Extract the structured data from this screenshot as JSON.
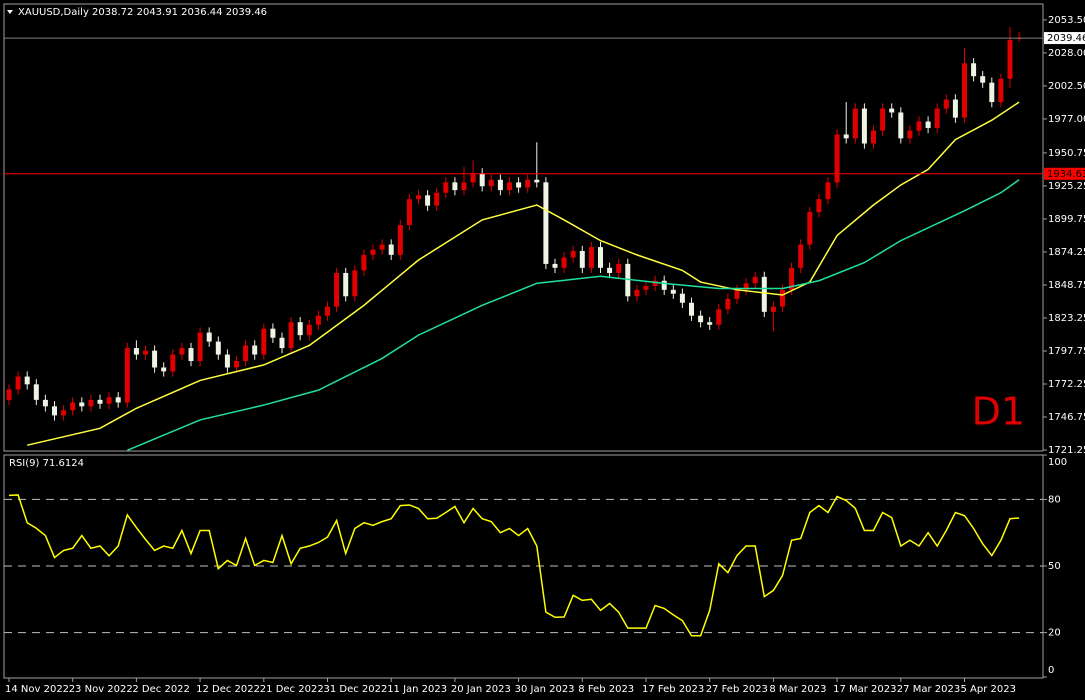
{
  "chart_data": {
    "type": "candlestick",
    "symbol": "XAUUSD,Daily",
    "timeframe_label": "D1",
    "up_color": "#e00000",
    "down_color": "#eef5e4",
    "ylim": [
      1720.5,
      2065
    ],
    "yticks": [
      {
        "value": 2053.5,
        "label": "2053.50"
      },
      {
        "value": 2028,
        "label": "2028.00"
      },
      {
        "value": 2002.5,
        "label": "2002.50"
      },
      {
        "value": 1977,
        "label": "1977.00"
      },
      {
        "value": 1950.75,
        "label": "1950.75"
      },
      {
        "value": 1925.25,
        "label": "1925.25"
      },
      {
        "value": 1899.75,
        "label": "1899.75"
      },
      {
        "value": 1874.25,
        "label": "1874.25"
      },
      {
        "value": 1848.75,
        "label": "1848.75"
      },
      {
        "value": 1823.25,
        "label": "1823.25"
      },
      {
        "value": 1797.75,
        "label": "1797.75"
      },
      {
        "value": 1772.25,
        "label": "1772.25"
      },
      {
        "value": 1746.75,
        "label": "1746.75"
      },
      {
        "value": 1721.25,
        "label": "1721.25"
      }
    ],
    "categories": [
      "14 Nov 2022",
      null,
      null,
      null,
      null,
      null,
      null,
      "23 Nov 2022",
      null,
      null,
      null,
      null,
      null,
      null,
      "2 Dec 2022",
      null,
      null,
      null,
      null,
      null,
      null,
      "12 Dec 2022",
      null,
      null,
      null,
      null,
      null,
      null,
      "21 Dec 2022",
      null,
      null,
      null,
      null,
      null,
      null,
      "31 Dec 2022",
      null,
      null,
      null,
      null,
      null,
      null,
      "11 Jan 2023",
      null,
      null,
      null,
      null,
      null,
      null,
      "20 Jan 2023",
      null,
      null,
      null,
      null,
      null,
      null,
      "30 Jan 2023",
      null,
      null,
      null,
      null,
      null,
      null,
      "8 Feb 2023",
      null,
      null,
      null,
      null,
      null,
      null,
      "17 Feb 2023",
      null,
      null,
      null,
      null,
      null,
      null,
      "27 Feb 2023",
      null,
      null,
      null,
      null,
      null,
      null,
      "8 Mar 2023",
      null,
      null,
      null,
      null,
      null,
      null,
      "17 Mar 2023",
      null,
      null,
      null,
      null,
      null,
      null,
      "27 Mar 2023",
      null,
      null,
      null,
      null,
      null,
      null,
      "5 Apr 2023",
      null,
      null,
      null,
      null,
      null,
      null
    ],
    "candles": [
      [
        1760,
        1772,
        1756,
        1768
      ],
      [
        1768,
        1782,
        1764,
        1778
      ],
      [
        1778,
        1782,
        1768,
        1772
      ],
      [
        1772,
        1776,
        1756,
        1760
      ],
      [
        1760,
        1764,
        1751,
        1755
      ],
      [
        1755,
        1759,
        1744,
        1748
      ],
      [
        1748,
        1756,
        1744,
        1752
      ],
      [
        1752,
        1762,
        1748,
        1758
      ],
      [
        1758,
        1762,
        1751,
        1755
      ],
      [
        1755,
        1764,
        1751,
        1760
      ],
      [
        1760,
        1764,
        1753,
        1757
      ],
      [
        1757,
        1766,
        1753,
        1762
      ],
      [
        1762,
        1766,
        1754,
        1758
      ],
      [
        1758,
        1804,
        1754,
        1800
      ],
      [
        1800,
        1806,
        1791,
        1795
      ],
      [
        1795,
        1802,
        1791,
        1798
      ],
      [
        1798,
        1802,
        1781,
        1785
      ],
      [
        1785,
        1789,
        1778,
        1782
      ],
      [
        1782,
        1799,
        1778,
        1795
      ],
      [
        1795,
        1804,
        1791,
        1800
      ],
      [
        1800,
        1804,
        1786,
        1790
      ],
      [
        1790,
        1816,
        1786,
        1812
      ],
      [
        1812,
        1816,
        1801,
        1805
      ],
      [
        1805,
        1809,
        1791,
        1795
      ],
      [
        1795,
        1799,
        1781,
        1785
      ],
      [
        1785,
        1794,
        1781,
        1790
      ],
      [
        1790,
        1806,
        1786,
        1802
      ],
      [
        1802,
        1806,
        1791,
        1795
      ],
      [
        1795,
        1819,
        1791,
        1815
      ],
      [
        1815,
        1819,
        1804,
        1808
      ],
      [
        1808,
        1812,
        1796,
        1800
      ],
      [
        1800,
        1824,
        1796,
        1820
      ],
      [
        1820,
        1824,
        1806,
        1810
      ],
      [
        1810,
        1822,
        1806,
        1818
      ],
      [
        1818,
        1829,
        1814,
        1825
      ],
      [
        1825,
        1836,
        1821,
        1832
      ],
      [
        1832,
        1862,
        1828,
        1858
      ],
      [
        1858,
        1862,
        1836,
        1840
      ],
      [
        1840,
        1864,
        1836,
        1860
      ],
      [
        1860,
        1876,
        1856,
        1872
      ],
      [
        1872,
        1880,
        1868,
        1876
      ],
      [
        1876,
        1884,
        1872,
        1880
      ],
      [
        1880,
        1884,
        1868,
        1872
      ],
      [
        1872,
        1899,
        1868,
        1895
      ],
      [
        1895,
        1919,
        1891,
        1915
      ],
      [
        1915,
        1922,
        1911,
        1918
      ],
      [
        1918,
        1922,
        1906,
        1910
      ],
      [
        1910,
        1924,
        1906,
        1920
      ],
      [
        1920,
        1932,
        1916,
        1928
      ],
      [
        1928,
        1932,
        1918,
        1922
      ],
      [
        1922,
        1940,
        1918,
        1928
      ],
      [
        1928,
        1945,
        1924,
        1935
      ],
      [
        1935,
        1939,
        1921,
        1925
      ],
      [
        1925,
        1934,
        1921,
        1930
      ],
      [
        1930,
        1934,
        1918,
        1922
      ],
      [
        1922,
        1932,
        1918,
        1928
      ],
      [
        1928,
        1932,
        1920,
        1924
      ],
      [
        1924,
        1934,
        1920,
        1930
      ],
      [
        1930,
        1959,
        1924,
        1928
      ],
      [
        1928,
        1932,
        1861,
        1865
      ],
      [
        1865,
        1869,
        1858,
        1862
      ],
      [
        1862,
        1874,
        1858,
        1870
      ],
      [
        1870,
        1879,
        1866,
        1875
      ],
      [
        1875,
        1879,
        1858,
        1862
      ],
      [
        1862,
        1882,
        1858,
        1878
      ],
      [
        1878,
        1882,
        1858,
        1862
      ],
      [
        1862,
        1866,
        1854,
        1858
      ],
      [
        1858,
        1869,
        1854,
        1865
      ],
      [
        1865,
        1869,
        1836,
        1840
      ],
      [
        1840,
        1849,
        1836,
        1845
      ],
      [
        1845,
        1852,
        1841,
        1848
      ],
      [
        1848,
        1856,
        1844,
        1852
      ],
      [
        1852,
        1856,
        1841,
        1845
      ],
      [
        1845,
        1849,
        1838,
        1842
      ],
      [
        1842,
        1846,
        1831,
        1835
      ],
      [
        1835,
        1839,
        1821,
        1825
      ],
      [
        1825,
        1829,
        1816,
        1820
      ],
      [
        1820,
        1824,
        1814,
        1818
      ],
      [
        1818,
        1834,
        1814,
        1830
      ],
      [
        1830,
        1842,
        1826,
        1838
      ],
      [
        1838,
        1849,
        1834,
        1845
      ],
      [
        1845,
        1854,
        1841,
        1850
      ],
      [
        1850,
        1859,
        1846,
        1855
      ],
      [
        1855,
        1859,
        1824,
        1828
      ],
      [
        1828,
        1836,
        1813,
        1832
      ],
      [
        1832,
        1849,
        1828,
        1845
      ],
      [
        1845,
        1866,
        1841,
        1862
      ],
      [
        1862,
        1884,
        1858,
        1880
      ],
      [
        1880,
        1909,
        1876,
        1905
      ],
      [
        1905,
        1919,
        1901,
        1915
      ],
      [
        1915,
        1932,
        1911,
        1928
      ],
      [
        1928,
        1969,
        1924,
        1965
      ],
      [
        1965,
        1990,
        1958,
        1962
      ],
      [
        1962,
        1989,
        1958,
        1985
      ],
      [
        1985,
        1989,
        1954,
        1958
      ],
      [
        1958,
        1972,
        1954,
        1968
      ],
      [
        1968,
        1989,
        1964,
        1985
      ],
      [
        1985,
        1989,
        1978,
        1982
      ],
      [
        1982,
        1986,
        1958,
        1962
      ],
      [
        1962,
        1972,
        1958,
        1968
      ],
      [
        1968,
        1979,
        1964,
        1975
      ],
      [
        1975,
        1979,
        1966,
        1970
      ],
      [
        1970,
        1989,
        1966,
        1985
      ],
      [
        1985,
        1996,
        1981,
        1992
      ],
      [
        1992,
        1996,
        1974,
        1978
      ],
      [
        1978,
        2032,
        1974,
        2020
      ],
      [
        2020,
        2024,
        2006,
        2010
      ],
      [
        2010,
        2014,
        2001,
        2005
      ],
      [
        2005,
        2009,
        1986,
        1990
      ],
      [
        1990,
        2012,
        1986,
        2008
      ],
      [
        2008,
        2048,
        2001,
        2038
      ],
      [
        2038.72,
        2043.91,
        2036.44,
        2039.46
      ]
    ],
    "moving_averages": [
      {
        "color": "#ffff40",
        "x": [
          2,
          10,
          14,
          21,
          28,
          33,
          39,
          45,
          52,
          58,
          61,
          65,
          69,
          74,
          76,
          80,
          85,
          88,
          91,
          95,
          98,
          101,
          104,
          108,
          111
        ],
        "values": [
          1725,
          1738,
          1753.5,
          1775,
          1787,
          1802,
          1833,
          1868,
          1899,
          1910.5,
          1899,
          1883,
          1872,
          1860,
          1851,
          1845,
          1841,
          1851,
          1887,
          1910.5,
          1926,
          1938,
          1961,
          1976,
          1990
        ]
      },
      {
        "color": "#20e0a0",
        "x": [
          13,
          21,
          28,
          34,
          41,
          45,
          52,
          58,
          65,
          72,
          78,
          85,
          89,
          94,
          98,
          105,
          109,
          111
        ],
        "values": [
          1721,
          1744.5,
          1756,
          1767.5,
          1792,
          1810,
          1833,
          1850,
          1855.5,
          1850,
          1846,
          1846,
          1852,
          1866,
          1883,
          1906,
          1920,
          1930
        ]
      }
    ],
    "price_lines": [
      {
        "value": 1934.63,
        "color": "#ff0000"
      }
    ],
    "rsi": {
      "title": "RSI(9)",
      "color": "#ffff00",
      "ylim": [
        0,
        100
      ],
      "yticks": [
        100,
        80,
        50,
        20,
        0
      ],
      "levels": [
        80,
        50,
        20
      ],
      "values": [
        81.8,
        82,
        69.5,
        67,
        63.7,
        53.8,
        57,
        58,
        63.7,
        58,
        59,
        54.6,
        59,
        73,
        67.3,
        62,
        57,
        59,
        58,
        66,
        55.6,
        66,
        66,
        48.8,
        52.5,
        50.2,
        62.4,
        50.2,
        52.5,
        51.6,
        63.7,
        51,
        58,
        59,
        60.6,
        63,
        70.5,
        55.6,
        66.9,
        69.5,
        68.3,
        70,
        71.3,
        77.2,
        77.5,
        75.9,
        71.3,
        71.5,
        74.1,
        76.8,
        69.5,
        75.9,
        71.3,
        70,
        65,
        66.9,
        63.7,
        66.9,
        59,
        29.2,
        26.9,
        27,
        36.8,
        34.5,
        35,
        30,
        33.1,
        29.2,
        22,
        22,
        22,
        32.2,
        30.9,
        28,
        25.4,
        18.6,
        18.6,
        30,
        51,
        47,
        54.7,
        59,
        59,
        36.2,
        39,
        45.7,
        61.6,
        62.4,
        74.1,
        77.2,
        74.1,
        81.3,
        79.5,
        76,
        66,
        66,
        74.1,
        71.8,
        59,
        61.6,
        59,
        65,
        59,
        66,
        74.1,
        72.7,
        66.9,
        60,
        54.7,
        61.6,
        71.3,
        71.6124
      ]
    }
  }
}
